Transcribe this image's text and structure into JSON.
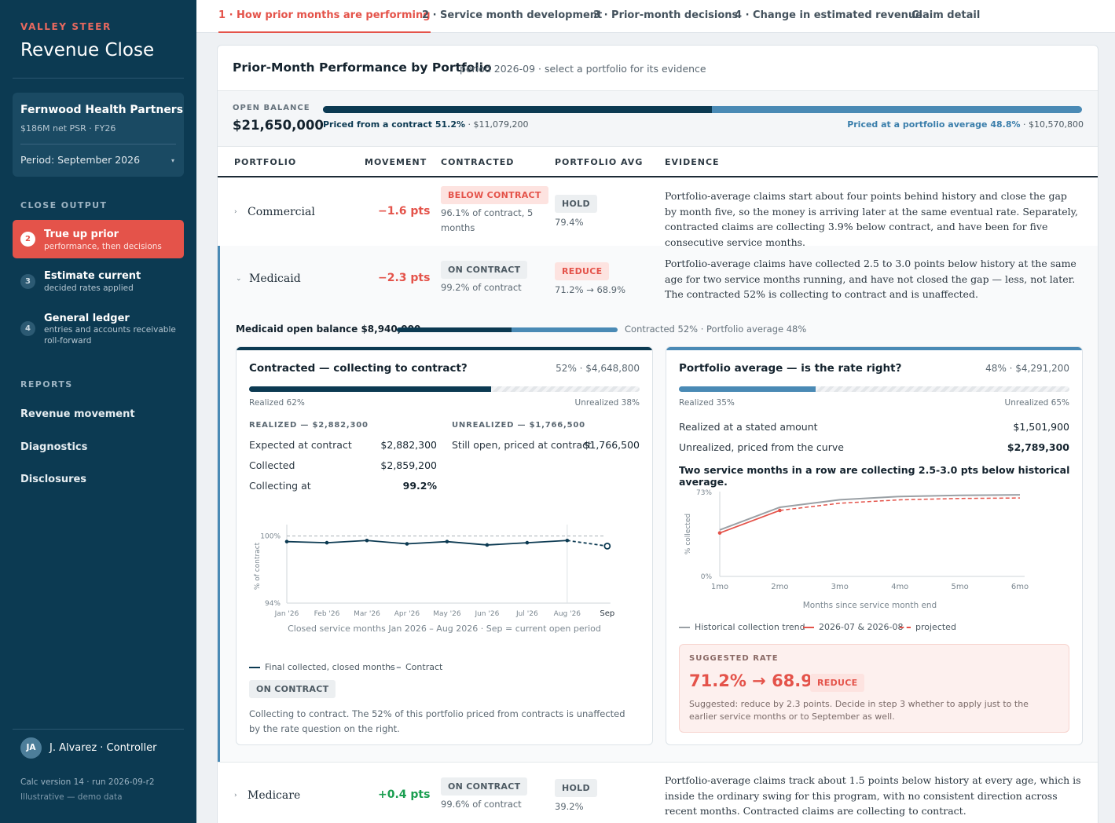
{
  "sidebar": {
    "brand_kicker": "VALLEY STEER",
    "brand_title": "Revenue Close",
    "client": {
      "name": "Fernwood Health Partners",
      "sub": "$186M net PSR · FY26",
      "period": "Period: September 2026"
    },
    "close_output_label": "CLOSE OUTPUT",
    "steps": [
      {
        "num": "2",
        "title": "True up prior",
        "desc": "performance, then decisions",
        "active": true
      },
      {
        "num": "3",
        "title": "Estimate current",
        "desc": "decided rates applied",
        "active": false
      },
      {
        "num": "4",
        "title": "General ledger",
        "desc": "entries and accounts receivable roll-forward",
        "active": false
      }
    ],
    "reports_label": "REPORTS",
    "reports": [
      "Revenue movement",
      "Diagnostics",
      "Disclosures"
    ],
    "user": {
      "initials": "JA",
      "name": "J. Alvarez · Controller"
    },
    "calc_version": "Calc version 14 · run 2026-09-r2",
    "demo_note": "Illustrative — demo data"
  },
  "tabs": [
    {
      "label": "1 · How prior months are performing",
      "active": true
    },
    {
      "label": "2 · Service month development",
      "active": false
    },
    {
      "label": "3 · Prior-month decisions",
      "active": false
    },
    {
      "label": "4 · Change in estimated revenue",
      "active": false
    },
    {
      "label": "Claim detail",
      "active": false
    }
  ],
  "card": {
    "title": "Prior-Month Performance by Portfolio",
    "subtitle": "period 2026-09 · select a portfolio for its evidence"
  },
  "open_balance": {
    "label": "OPEN BALANCE",
    "value": "$21,650,000",
    "contract_pct": 51.2,
    "left_label": "Priced from a contract 51.2%",
    "left_amount": " · $11,079,200",
    "right_label": "Priced at a portfolio average 48.8%",
    "right_amount": " · $10,570,800"
  },
  "columns": [
    "PORTFOLIO",
    "MOVEMENT",
    "CONTRACTED",
    "PORTFOLIO AVG",
    "EVIDENCE"
  ],
  "portfolios": [
    {
      "name": "Commercial",
      "movement": "−1.6 pts",
      "contracted_badge": "BELOW CONTRACT",
      "contracted_text": "96.1% of contract, 5 months",
      "avg_badge": "HOLD",
      "avg_text": "79.4%",
      "evidence": "Portfolio-average claims start about four points behind history and close the gap by month five, so the money is arriving later at the same eventual rate. Separately, contracted claims are collecting 3.9% below contract, and have been for five consecutive service months."
    },
    {
      "name": "Medicaid",
      "movement": "−2.3 pts",
      "contracted_badge": "ON CONTRACT",
      "contracted_text": "99.2% of contract",
      "avg_badge": "REDUCE",
      "avg_text": "71.2% → 68.9%",
      "evidence": "Portfolio-average claims have collected 2.5 to 3.0 points below history at the same age for two service months running, and have not closed the gap — less, not later. The contracted 52% is collecting to contract and is unaffected."
    },
    {
      "name": "Medicare",
      "movement": "+0.4 pts",
      "contracted_badge": "ON CONTRACT",
      "contracted_text": "99.6% of contract",
      "avg_badge": "HOLD",
      "avg_text": "39.2%",
      "evidence": "Portfolio-average claims track about 1.5 points below history at every age, which is inside the ordinary swing for this program, with no consistent direction across recent months. Contracted claims are collecting to contract."
    }
  ],
  "medicaid_detail": {
    "open_balance_label": "Medicaid open balance $8,940,000",
    "contract_share": 0.52,
    "split_note": "Contracted 52% · Portfolio average 48%",
    "contracted_panel": {
      "title": "Contracted — collecting to contract?",
      "amount": "52% · $4,648,800",
      "realized_pct": 62,
      "realized_label": "Realized 62%",
      "unrealized_label": "Unrealized 38%",
      "realized_head": "REALIZED — $2,882,300",
      "unrealized_head": "UNREALIZED — $1,766,500",
      "rows": [
        {
          "label": "Expected at contract",
          "value": "$2,882,300"
        },
        {
          "label": "Collected",
          "value": "$2,859,200"
        },
        {
          "label": "Collecting at",
          "value": "99.2%"
        }
      ],
      "unrealized_rows": [
        {
          "label": "Still open, priced at contract",
          "value": "$1,766,500"
        }
      ],
      "caption": "Closed service months Jan 2026 – Aug 2026 · Sep = current open period",
      "legend_final": "Final collected, closed months",
      "legend_contract": "Contract",
      "status_badge": "ON CONTRACT",
      "note": "Collecting to contract. The 52% of this portfolio priced from contracts is unaffected by the rate question on the right."
    },
    "average_panel": {
      "title": "Portfolio average — is the rate right?",
      "amount": "48% · $4,291,200",
      "realized_pct": 35,
      "realized_label": "Realized 35%",
      "unrealized_label": "Unrealized 65%",
      "rows": [
        {
          "label": "Realized at a stated amount",
          "value": "$1,501,900"
        },
        {
          "label": "Unrealized, priced from the curve",
          "value": "$2,789,300"
        }
      ],
      "insight": "Two service months in a row are collecting 2.5-3.0 pts below historical average.",
      "legend_hist": "Historical collection trend",
      "legend_recent": "2026-07 & 2026-08",
      "legend_proj": "projected",
      "suggested_label": "SUGGESTED RATE",
      "suggested_rate": "71.2% → 68.9%",
      "suggested_badge": "REDUCE",
      "suggested_note": "Suggested: reduce by 2.3 points. Decide in step 3 whether to apply just to the earlier service months or to September as well."
    }
  },
  "chart_data": [
    {
      "type": "line",
      "title": "",
      "xlabel": "",
      "ylabel": "% of contract",
      "ylim": [
        94,
        100.6
      ],
      "ytick_labels": [
        "100%",
        "94%"
      ],
      "categories": [
        "Jan '26",
        "Feb '26",
        "Mar '26",
        "Apr '26",
        "May '26",
        "Jun '26",
        "Jul '26",
        "Aug '26",
        "Sep"
      ],
      "series": [
        {
          "name": "Final collected, closed months",
          "values": [
            99.5,
            99.4,
            99.6,
            99.3,
            99.5,
            99.2,
            99.4,
            99.6,
            null
          ]
        },
        {
          "name": "",
          "values": [
            null,
            null,
            null,
            null,
            null,
            null,
            null,
            99.6,
            99.1
          ]
        },
        {
          "name": "Contract",
          "values": [
            100,
            100,
            100,
            100,
            100,
            100,
            100,
            100,
            100
          ]
        }
      ],
      "grid": false
    },
    {
      "type": "line",
      "title": "",
      "xlabel": "Months since service month end",
      "ylabel": "% collected",
      "ylim": [
        0,
        73
      ],
      "ytick_labels": [
        "73%",
        "0%"
      ],
      "categories": [
        "1mo",
        "2mo",
        "3mo",
        "4mo",
        "5mo",
        "6mo"
      ],
      "series": [
        {
          "name": "Historical collection trend",
          "values": [
            40.0,
            59.5,
            66.0,
            68.8,
            69.8,
            70.2
          ]
        },
        {
          "name": "2026-07 & 2026-08",
          "values": [
            37.4,
            56.8,
            null,
            null,
            null,
            null
          ]
        },
        {
          "name": "projected",
          "values": [
            null,
            56.8,
            63.0,
            65.9,
            67.1,
            67.5
          ]
        }
      ],
      "grid": false
    }
  ],
  "colors": {
    "navy": "#0c3a52",
    "accent_red": "#e4534a",
    "blue": "#4a8ab5",
    "green": "#1a9e50"
  }
}
